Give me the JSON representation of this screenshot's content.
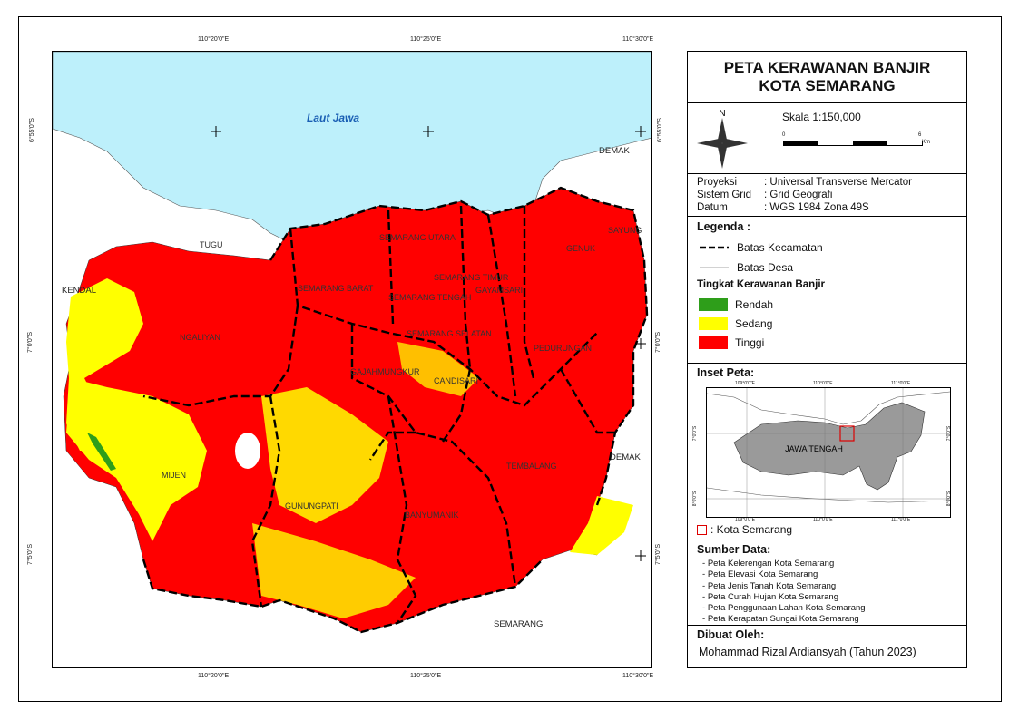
{
  "title": {
    "line1": "PETA KERAWANAN BANJIR",
    "line2": "KOTA SEMARANG"
  },
  "scale": {
    "label": "Skala 1:150,000",
    "tick_start": "0",
    "tick_end": "6",
    "unit": "Km",
    "north": "N"
  },
  "projection": [
    {
      "key": "Proyeksi",
      "value": ": Universal Transverse Mercator"
    },
    {
      "key": "Sistem Grid",
      "value": ": Grid Geografi"
    },
    {
      "key": "Datum",
      "value": ": WGS 1984 Zona 49S"
    }
  ],
  "legend": {
    "header": "Legenda :",
    "kecamatan": "Batas Kecamatan",
    "desa": "Batas Desa",
    "level_header": "Tingkat Kerawanan Banjir",
    "levels": [
      {
        "label": "Rendah",
        "color": "#2e9e1a"
      },
      {
        "label": "Sedang",
        "color": "#ffff00"
      },
      {
        "label": "Tinggi",
        "color": "#ff0000"
      }
    ]
  },
  "inset": {
    "header": "Inset Peta:",
    "region_label": "JAWA TENGAH",
    "key_label": ": Kota Semarang",
    "top_ticks": [
      "109°0'0\"E",
      "110°0'0\"E",
      "111°0'0\"E"
    ],
    "bottom_ticks": [
      "109°0'0\"E",
      "110°0'0\"E",
      "111°0'0\"E"
    ],
    "left_ticks": [
      "7°0'0\"S",
      "8°0'0\"S"
    ],
    "right_ticks": [
      "7°0'0\"S",
      "8°0'0\"S"
    ]
  },
  "sources": {
    "header": "Sumber Data:",
    "items": [
      "Peta Kelerengan Kota Semarang",
      "Peta Elevasi Kota Semarang",
      "Peta Jenis Tanah Kota Semarang",
      "Peta Curah Hujan Kota Semarang",
      "Peta Penggunaan Lahan Kota Semarang",
      "Peta Kerapatan Sungai Kota Semarang"
    ]
  },
  "author": {
    "header": "Dibuat Oleh:",
    "name": "Mohammad Rizal Ardiansyah (Tahun 2023)"
  },
  "map": {
    "sea_label": "Laut Jawa",
    "top_ticks": [
      "110°20'0\"E",
      "110°25'0\"E",
      "110°30'0\"E"
    ],
    "bottom_ticks": [
      "110°20'0\"E",
      "110°25'0\"E",
      "110°30'0\"E"
    ],
    "left_ticks": [
      "6°55'0\"S",
      "7°0'0\"S",
      "7°5'0\"S"
    ],
    "right_ticks": [
      "6°55'0\"S",
      "7°0'0\"S",
      "7°5'0\"S"
    ],
    "outside_labels": [
      "DEMAK",
      "KENDAL",
      "DEMAK",
      "SEMARANG"
    ],
    "districts": [
      "TUGU",
      "SEMARANG UTARA",
      "SAYUNG",
      "GENUK",
      "SEMARANG TIMUR",
      "SEMARANG BARAT",
      "SEMARANG TENGAH",
      "GAYAMSARI",
      "SEMARANG SELATAN",
      "PEDURUNGAN",
      "NGALIYAN",
      "GAJAHMUNGKUR",
      "CANDISARI",
      "MIJEN",
      "TEMBALANG",
      "GUNUNGPATI",
      "BANYUMANIK"
    ],
    "colors": {
      "sea": "#bdf0fb",
      "high": "#ff0000",
      "medium": "#ffff00",
      "low": "#2e9e1a"
    }
  }
}
